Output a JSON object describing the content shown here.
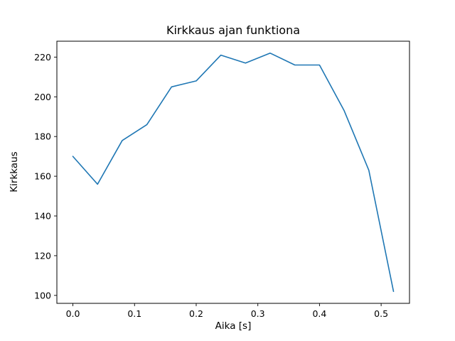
{
  "figure": {
    "background": "#ffffff"
  },
  "chart_data": {
    "type": "line",
    "title": "Kirkkaus ajan funktiona",
    "xlabel": "Aika [s]",
    "ylabel": "Kirkkaus",
    "x": [
      0.0,
      0.04,
      0.08,
      0.12,
      0.16,
      0.2,
      0.24,
      0.28,
      0.32,
      0.36,
      0.4,
      0.44,
      0.48,
      0.52
    ],
    "y": [
      170,
      156,
      178,
      186,
      205,
      208,
      221,
      217,
      222,
      216,
      216,
      193,
      163,
      102
    ],
    "xlim": [
      -0.026,
      0.546
    ],
    "ylim": [
      96,
      228
    ],
    "xticks": [
      0.0,
      0.1,
      0.2,
      0.3,
      0.4,
      0.5
    ],
    "yticks": [
      100,
      120,
      140,
      160,
      180,
      200,
      220
    ],
    "x_tick_decimals": 1,
    "line_color": "#1f77b4",
    "axis_color": "#000000",
    "grid": false,
    "legend": null
  }
}
